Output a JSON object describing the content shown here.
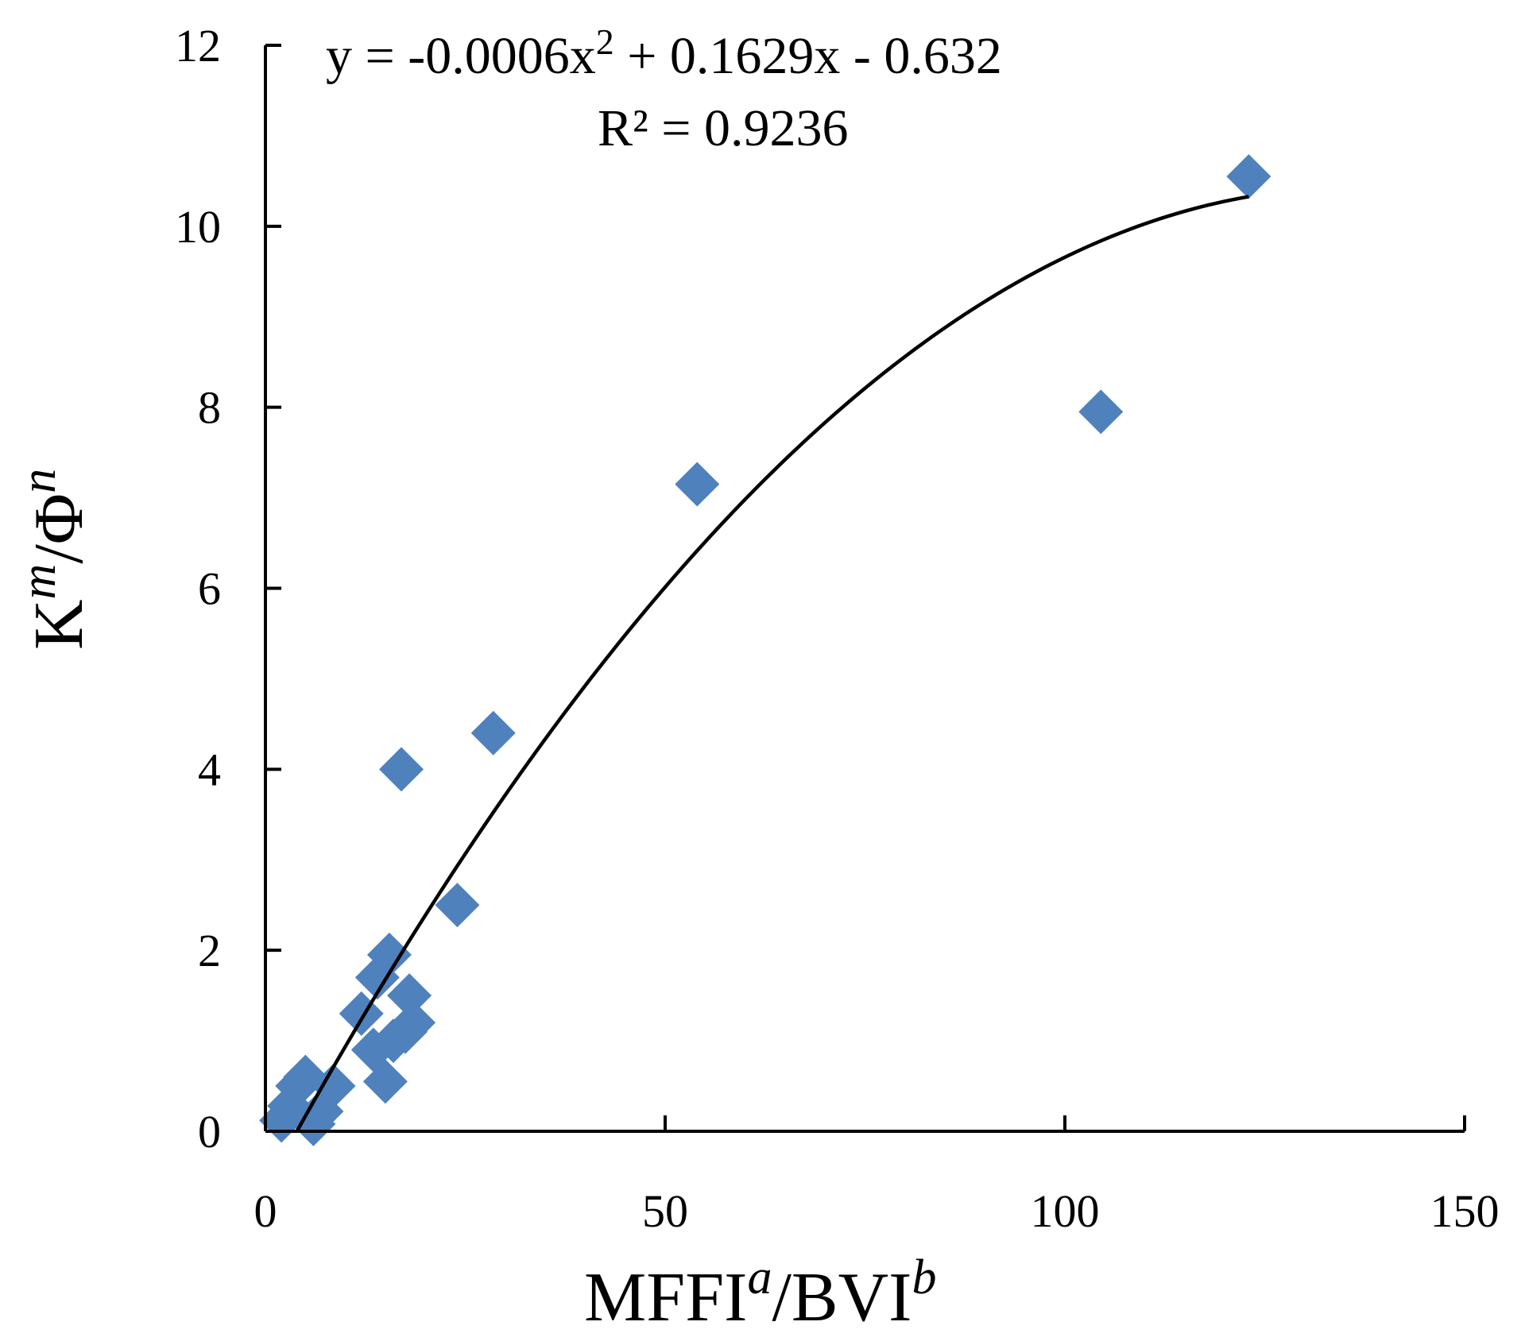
{
  "chart_data": {
    "type": "scatter",
    "title": "",
    "xlabel": {
      "base1": "MFFI",
      "sup1": "a",
      "mid": "/BVI",
      "sup2": "b"
    },
    "ylabel": {
      "base1": "K",
      "sup1": "m",
      "mid": "/Φ",
      "sup2": "n"
    },
    "xlim": [
      0,
      150
    ],
    "ylim": [
      0,
      12
    ],
    "xticks": [
      0,
      50,
      100,
      150
    ],
    "yticks": [
      0,
      2,
      4,
      6,
      8,
      10,
      12
    ],
    "grid": false,
    "marker_color": "#4F81BD",
    "points": [
      {
        "x": 2.0,
        "y": 0.12
      },
      {
        "x": 3.0,
        "y": 0.28
      },
      {
        "x": 4.0,
        "y": 0.5
      },
      {
        "x": 5.0,
        "y": 0.6
      },
      {
        "x": 6.0,
        "y": 0.08
      },
      {
        "x": 7.0,
        "y": 0.22
      },
      {
        "x": 8.5,
        "y": 0.5
      },
      {
        "x": 12.0,
        "y": 1.3
      },
      {
        "x": 13.5,
        "y": 0.9
      },
      {
        "x": 14.0,
        "y": 1.7
      },
      {
        "x": 15.0,
        "y": 0.55
      },
      {
        "x": 15.5,
        "y": 1.95
      },
      {
        "x": 16.0,
        "y": 1.0
      },
      {
        "x": 17.0,
        "y": 4.0
      },
      {
        "x": 17.5,
        "y": 1.1
      },
      {
        "x": 18.0,
        "y": 1.5
      },
      {
        "x": 18.5,
        "y": 1.2
      },
      {
        "x": 24.0,
        "y": 2.5
      },
      {
        "x": 28.5,
        "y": 4.4
      },
      {
        "x": 54.0,
        "y": 7.15
      },
      {
        "x": 104.5,
        "y": 7.95
      },
      {
        "x": 123.0,
        "y": 10.55
      }
    ],
    "trendline": {
      "type": "polynomial",
      "coefficients": [
        -0.0006,
        0.1629,
        -0.632
      ],
      "x_range": [
        4.0,
        123.0
      ],
      "color": "#000000",
      "equation": {
        "prefix": "y = -0.0006x",
        "sup": "2",
        "suffix": " + 0.1629x - 0.632"
      },
      "r_squared_label": "R² = 0.9236"
    }
  }
}
